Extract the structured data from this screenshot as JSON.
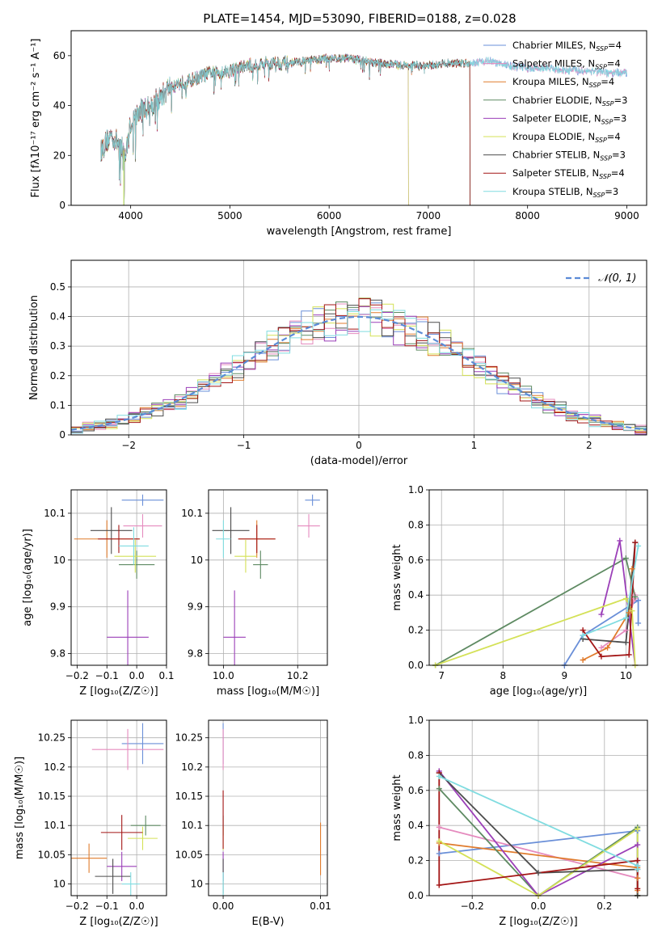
{
  "figure": {
    "title": "PLATE=1454, MJD=53090, FIBERID=0188, z=0.028",
    "model_colors": [
      "#6a8fd8",
      "#e58bbe",
      "#e07b2c",
      "#5e8a62",
      "#9b3fb8",
      "#d4e157",
      "#4d4d4d",
      "#a31515",
      "#80dce0"
    ]
  },
  "chart_data": [
    {
      "id": "spectrum",
      "type": "line",
      "title": "PLATE=1454, MJD=53090, FIBERID=0188, z=0.028",
      "xlabel": "wavelength [Angstrom, rest frame]",
      "ylabel": "Flux [fλ10⁻¹⁷ erg cm⁻² s⁻¹ A⁻¹]",
      "xlim": [
        3400,
        9200
      ],
      "ylim": [
        0,
        70
      ],
      "xticks": [
        4000,
        5000,
        6000,
        7000,
        8000,
        9000
      ],
      "yticks": [
        0,
        20,
        40,
        60
      ],
      "legend_position": "top-right",
      "legend": [
        "Chabrier MILES, N_SSP=4",
        "Salpeter MILES, N_SSP=4",
        "Kroupa MILES, N_SSP=4",
        "Chabrier ELODIE, N_SSP=3",
        "Salpeter ELODIE, N_SSP=3",
        "Kroupa ELODIE, N_SSP=4",
        "Chabrier STELIB, N_SSP=3",
        "Salpeter STELIB, N_SSP=4",
        "Kroupa STELIB, N_SSP=3"
      ],
      "continuum_x": [
        3700,
        3800,
        3900,
        3950,
        4000,
        4100,
        4200,
        4300,
        4400,
        4600,
        4800,
        5000,
        5200,
        5400,
        5600,
        5800,
        6000,
        6200,
        6500,
        6800,
        7000,
        7200,
        7400,
        7600,
        7800,
        8000,
        8200,
        8400,
        8600,
        8800,
        9000
      ],
      "continuum_y": [
        22,
        28,
        24,
        20,
        33,
        38,
        40,
        43,
        48,
        50,
        53,
        54,
        56,
        57,
        57,
        58,
        59,
        59,
        57,
        56,
        56,
        57,
        57,
        58,
        56,
        55,
        55,
        54,
        54,
        53,
        53
      ],
      "model_ranges": [
        [
          3700,
          9000
        ],
        [
          3700,
          9000
        ],
        [
          3700,
          7420
        ],
        [
          3700,
          7420
        ],
        [
          3700,
          6800
        ],
        [
          3700,
          6800
        ],
        [
          3700,
          7420
        ],
        [
          3700,
          7420
        ],
        [
          3700,
          9000
        ]
      ],
      "dropouts": [
        3930,
        6800,
        7420
      ]
    },
    {
      "id": "residuals",
      "type": "histogram",
      "xlabel": "(data-model)/error",
      "ylabel": "Normed distribution",
      "xlim": [
        -2.5,
        2.5
      ],
      "ylim": [
        0,
        0.59
      ],
      "xticks": [
        -2,
        -1,
        0,
        1,
        2
      ],
      "yticks": [
        0,
        0.1,
        0.2,
        0.3,
        0.4,
        0.5
      ],
      "legend_position": "top-right",
      "legend": [
        "𝒩(0, 1)"
      ],
      "bin_width": 0.1,
      "gaussian": {
        "mean": 0,
        "sigma": 1
      }
    },
    {
      "id": "age-vs-Z",
      "type": "scatter",
      "xlabel": "Z [log₁₀(Z/Z☉)]",
      "ylabel": "age  [log₁₀(age/yr)]",
      "xlim": [
        -0.22,
        0.1
      ],
      "ylim": [
        9.775,
        10.15
      ],
      "xticks": [
        -0.2,
        -0.1,
        0.0,
        0.1
      ],
      "xticklabels": [
        "−0.2",
        "−0.1",
        "0.0",
        "0.1"
      ],
      "yticks": [
        9.8,
        9.9,
        10.0,
        10.1
      ],
      "points": [
        {
          "x": 0.02,
          "y": 10.128,
          "xerr": 0.07,
          "yerr": 0.012
        },
        {
          "x": 0.02,
          "y": 10.073,
          "xerr": 0.065,
          "yerr": 0.025
        },
        {
          "x": -0.1,
          "y": 10.045,
          "xerr": 0.11,
          "yerr": 0.04
        },
        {
          "x": 0.0,
          "y": 9.99,
          "xerr": 0.06,
          "yerr": 0.03
        },
        {
          "x": -0.03,
          "y": 9.835,
          "xerr": 0.07,
          "yerr": 0.1
        },
        {
          "x": -0.005,
          "y": 10.008,
          "xerr": 0.07,
          "yerr": 0.035
        },
        {
          "x": -0.085,
          "y": 10.063,
          "xerr": 0.07,
          "yerr": 0.05
        },
        {
          "x": -0.06,
          "y": 10.045,
          "xerr": 0.07,
          "yerr": 0.03
        },
        {
          "x": -0.01,
          "y": 10.03,
          "xerr": 0.05,
          "yerr": 0.04
        }
      ]
    },
    {
      "id": "age-vs-mass",
      "type": "scatter",
      "xlabel": "mass [log₁₀(M/M☉)]",
      "ylabel": "",
      "xlim": [
        9.96,
        10.28
      ],
      "ylim": [
        9.775,
        10.15
      ],
      "xticks": [
        10.0,
        10.2
      ],
      "xticklabels": [
        "10.0",
        "10.2"
      ],
      "yticks": [
        9.8,
        9.9,
        10.0,
        10.1
      ],
      "points": [
        {
          "x": 10.24,
          "y": 10.128,
          "xerr": 0.02,
          "yerr": 0.012
        },
        {
          "x": 10.23,
          "y": 10.073,
          "xerr": 0.03,
          "yerr": 0.025
        },
        {
          "x": 10.09,
          "y": 10.045,
          "xerr": 0.05,
          "yerr": 0.04
        },
        {
          "x": 10.1,
          "y": 9.99,
          "xerr": 0.02,
          "yerr": 0.03
        },
        {
          "x": 10.03,
          "y": 9.835,
          "xerr": 0.03,
          "yerr": 0.1
        },
        {
          "x": 10.06,
          "y": 10.008,
          "xerr": 0.03,
          "yerr": 0.035
        },
        {
          "x": 10.02,
          "y": 10.063,
          "xerr": 0.05,
          "yerr": 0.05
        },
        {
          "x": 10.09,
          "y": 10.045,
          "xerr": 0.05,
          "yerr": 0.03
        },
        {
          "x": 10.0,
          "y": 10.045,
          "xerr": 0.02,
          "yerr": 0.04
        }
      ]
    },
    {
      "id": "weight-vs-age",
      "type": "line",
      "xlabel": "age  [log₁₀(age/yr)]",
      "ylabel": "mass weight",
      "xlim": [
        6.8,
        10.35
      ],
      "ylim": [
        0,
        1.0
      ],
      "xticks": [
        7,
        8,
        9,
        10
      ],
      "yticks": [
        0.0,
        0.2,
        0.4,
        0.6,
        0.8,
        1.0
      ],
      "series": [
        {
          "x": [
            9.0,
            9.3,
            10.2,
            10.2
          ],
          "y": [
            0.0,
            0.17,
            0.37,
            0.24
          ]
        },
        {
          "x": [
            9.6,
            10.0,
            10.15,
            10.15
          ],
          "y": [
            0.1,
            0.2,
            0.4,
            0.38
          ]
        },
        {
          "x": [
            9.3,
            9.7,
            10.05,
            10.1
          ],
          "y": [
            0.03,
            0.1,
            0.3,
            0.55
          ]
        },
        {
          "x": [
            6.9,
            10.0,
            10.15
          ],
          "y": [
            0.0,
            0.61,
            0.39
          ]
        },
        {
          "x": [
            9.6,
            9.9,
            10.15
          ],
          "y": [
            0.29,
            0.71,
            0.0
          ]
        },
        {
          "x": [
            6.9,
            10.0,
            10.1,
            10.15
          ],
          "y": [
            0.0,
            0.38,
            0.31,
            0.0
          ]
        },
        {
          "x": [
            9.3,
            10.0,
            10.15
          ],
          "y": [
            0.15,
            0.13,
            0.7
          ]
        },
        {
          "x": [
            9.3,
            9.6,
            10.05,
            10.15
          ],
          "y": [
            0.2,
            0.05,
            0.06,
            0.7
          ]
        },
        {
          "x": [
            9.3,
            10.0,
            10.2
          ],
          "y": [
            0.17,
            0.27,
            0.68
          ]
        }
      ]
    },
    {
      "id": "mass-vs-Z",
      "type": "scatter",
      "xlabel": "Z [log₁₀(Z/Z☉)]",
      "ylabel": "mass [log₁₀(M/M☉)]",
      "xlim": [
        -0.22,
        0.1
      ],
      "ylim": [
        9.98,
        10.28
      ],
      "xticks": [
        -0.2,
        -0.1,
        0.0
      ],
      "xticklabels": [
        "−0.2",
        "−0.1",
        "0.0"
      ],
      "yticks": [
        10.0,
        10.05,
        10.1,
        10.15,
        10.2,
        10.25
      ],
      "points": [
        {
          "x": 0.02,
          "y": 10.24,
          "xerr": 0.07,
          "yerr": 0.035
        },
        {
          "x": -0.03,
          "y": 10.23,
          "xerr": 0.12,
          "yerr": 0.035
        },
        {
          "x": -0.16,
          "y": 10.044,
          "xerr": 0.06,
          "yerr": 0.025
        },
        {
          "x": 0.03,
          "y": 10.1,
          "xerr": 0.05,
          "yerr": 0.017
        },
        {
          "x": -0.05,
          "y": 10.03,
          "xerr": 0.05,
          "yerr": 0.025
        },
        {
          "x": 0.02,
          "y": 10.078,
          "xerr": 0.05,
          "yerr": 0.02
        },
        {
          "x": -0.08,
          "y": 10.013,
          "xerr": 0.06,
          "yerr": 0.03
        },
        {
          "x": -0.05,
          "y": 10.088,
          "xerr": 0.07,
          "yerr": 0.03
        },
        {
          "x": -0.02,
          "y": 10.0,
          "xerr": 0.03,
          "yerr": 0.02
        }
      ]
    },
    {
      "id": "mass-vs-ebv",
      "type": "scatter",
      "xlabel": "E(B-V)",
      "ylabel": "",
      "xlim": [
        -0.0015,
        0.0107
      ],
      "ylim": [
        9.98,
        10.28
      ],
      "xticks": [
        0.0,
        0.01
      ],
      "xticklabels": [
        "0.00",
        "0.01"
      ],
      "yticks": [
        10.0,
        10.05,
        10.1,
        10.15,
        10.2,
        10.25
      ],
      "points": [
        {
          "x": 0.0,
          "y": 10.24,
          "xerr": 0,
          "yerr": 0.035
        },
        {
          "x": 0.0,
          "y": 10.23,
          "xerr": 0,
          "yerr": 0.035
        },
        {
          "x": 0.01,
          "y": 10.06,
          "xerr": 0,
          "yerr": 0.045
        },
        {
          "x": 0.0,
          "y": 10.1,
          "xerr": 0,
          "yerr": 0.017
        },
        {
          "x": 0.0,
          "y": 10.03,
          "xerr": 0,
          "yerr": 0.025
        },
        {
          "x": 0.0,
          "y": 10.078,
          "xerr": 0,
          "yerr": 0.02
        },
        {
          "x": 0.0,
          "y": 10.013,
          "xerr": 0,
          "yerr": 0.03
        },
        {
          "x": 0.0,
          "y": 10.11,
          "xerr": 0,
          "yerr": 0.05
        },
        {
          "x": 0.0,
          "y": 10.0,
          "xerr": 0,
          "yerr": 0.02
        }
      ]
    },
    {
      "id": "weight-vs-Z",
      "type": "line",
      "xlabel": "Z [log₁₀(Z/Z☉)]",
      "ylabel": "mass weight",
      "xlim": [
        -0.33,
        0.33
      ],
      "ylim": [
        0,
        1.0
      ],
      "xticks": [
        -0.2,
        0.0,
        0.2
      ],
      "xticklabels": [
        "−0.2",
        "0.0",
        "0.2"
      ],
      "yticks": [
        0.0,
        0.2,
        0.4,
        0.6,
        0.8,
        1.0
      ],
      "series": [
        {
          "x": [
            -0.3,
            0.3,
            0.3,
            0.3
          ],
          "y": [
            0.24,
            0.37,
            0.17,
            0.0
          ]
        },
        {
          "x": [
            -0.3,
            0.3,
            0.3
          ],
          "y": [
            0.39,
            0.1,
            0.2
          ]
        },
        {
          "x": [
            -0.3,
            0.3,
            0.3,
            0.3
          ],
          "y": [
            0.3,
            0.16,
            0.03,
            0.1
          ]
        },
        {
          "x": [
            -0.3,
            0.0,
            0.3,
            0.3
          ],
          "y": [
            0.61,
            0.0,
            0.39,
            0.0
          ]
        },
        {
          "x": [
            -0.3,
            0.0,
            0.3,
            0.3
          ],
          "y": [
            0.71,
            0.0,
            0.29,
            0.0
          ]
        },
        {
          "x": [
            -0.3,
            0.0,
            0.3,
            0.3
          ],
          "y": [
            0.31,
            0.0,
            0.38,
            0.0
          ]
        },
        {
          "x": [
            -0.3,
            0.0,
            0.3,
            0.3
          ],
          "y": [
            0.7,
            0.13,
            0.15,
            0.0
          ]
        },
        {
          "x": [
            -0.3,
            -0.3,
            0.3,
            0.3
          ],
          "y": [
            0.7,
            0.06,
            0.2,
            0.04
          ]
        },
        {
          "x": [
            -0.3,
            0.3,
            0.3
          ],
          "y": [
            0.68,
            0.17,
            0.15
          ]
        }
      ]
    }
  ]
}
